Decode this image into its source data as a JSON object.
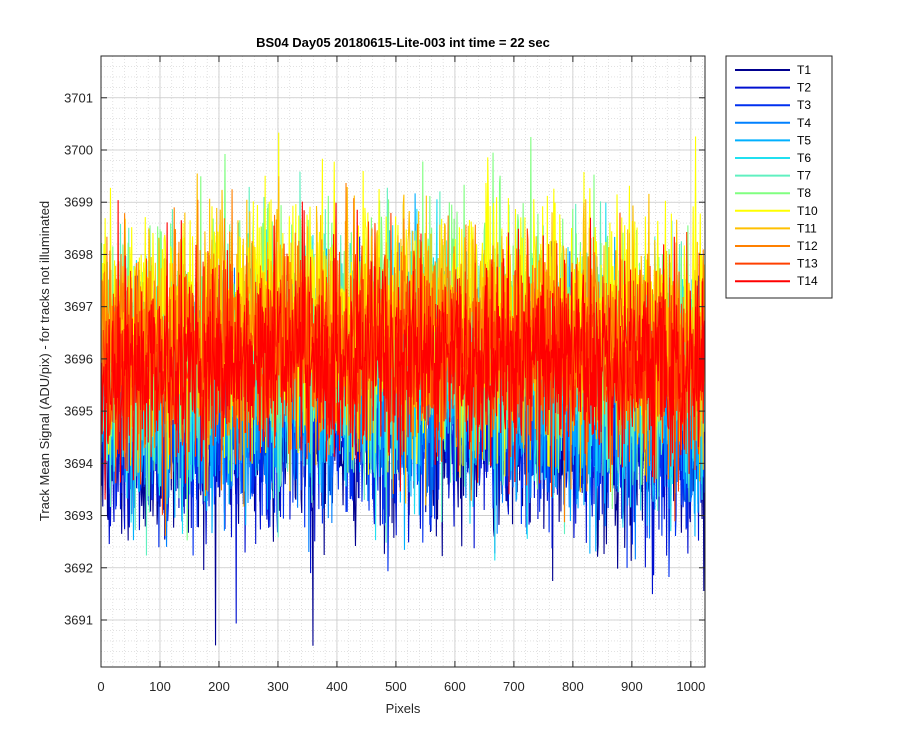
{
  "chart_data": {
    "type": "line",
    "title": "BS04 Day05 20180615-Lite-003 int time = 22 sec",
    "xlabel": "Pixels",
    "ylabel": "Track Mean Signal (ADU/pix) - for tracks not illuminated",
    "xlim": [
      0,
      1024
    ],
    "ylim": [
      3690.1,
      3701.8
    ],
    "xticks": [
      0,
      100,
      200,
      300,
      400,
      500,
      600,
      700,
      800,
      900,
      1000
    ],
    "yticks": [
      3691,
      3692,
      3693,
      3694,
      3695,
      3696,
      3697,
      3698,
      3699,
      3700,
      3701
    ],
    "grid": "major and minor",
    "legend_position": "outside-top-right",
    "n_points_per_series": 1024,
    "series": [
      {
        "name": "T1",
        "color": "#00008F",
        "mean": 3694.3,
        "noise": 1.0
      },
      {
        "name": "T2",
        "color": "#0010D0",
        "mean": 3694.5,
        "noise": 1.0
      },
      {
        "name": "T3",
        "color": "#0030F0",
        "mean": 3694.7,
        "noise": 1.0
      },
      {
        "name": "T4",
        "color": "#0080FF",
        "mean": 3694.9,
        "noise": 1.0
      },
      {
        "name": "T5",
        "color": "#00B0FF",
        "mean": 3695.1,
        "noise": 1.0
      },
      {
        "name": "T6",
        "color": "#20E0F0",
        "mean": 3695.5,
        "noise": 1.1
      },
      {
        "name": "T7",
        "color": "#60F0C0",
        "mean": 3695.9,
        "noise": 1.1
      },
      {
        "name": "T8",
        "color": "#80FF80",
        "mean": 3696.3,
        "noise": 1.1
      },
      {
        "name": "T10",
        "color": "#FFFF00",
        "mean": 3696.6,
        "noise": 1.1
      },
      {
        "name": "T11",
        "color": "#FFC000",
        "mean": 3696.3,
        "noise": 1.1
      },
      {
        "name": "T12",
        "color": "#FF8000",
        "mean": 3696.0,
        "noise": 1.0
      },
      {
        "name": "T13",
        "color": "#FF4000",
        "mean": 3695.8,
        "noise": 1.0
      },
      {
        "name": "T14",
        "color": "#FF0000",
        "mean": 3695.6,
        "noise": 0.9
      }
    ]
  }
}
